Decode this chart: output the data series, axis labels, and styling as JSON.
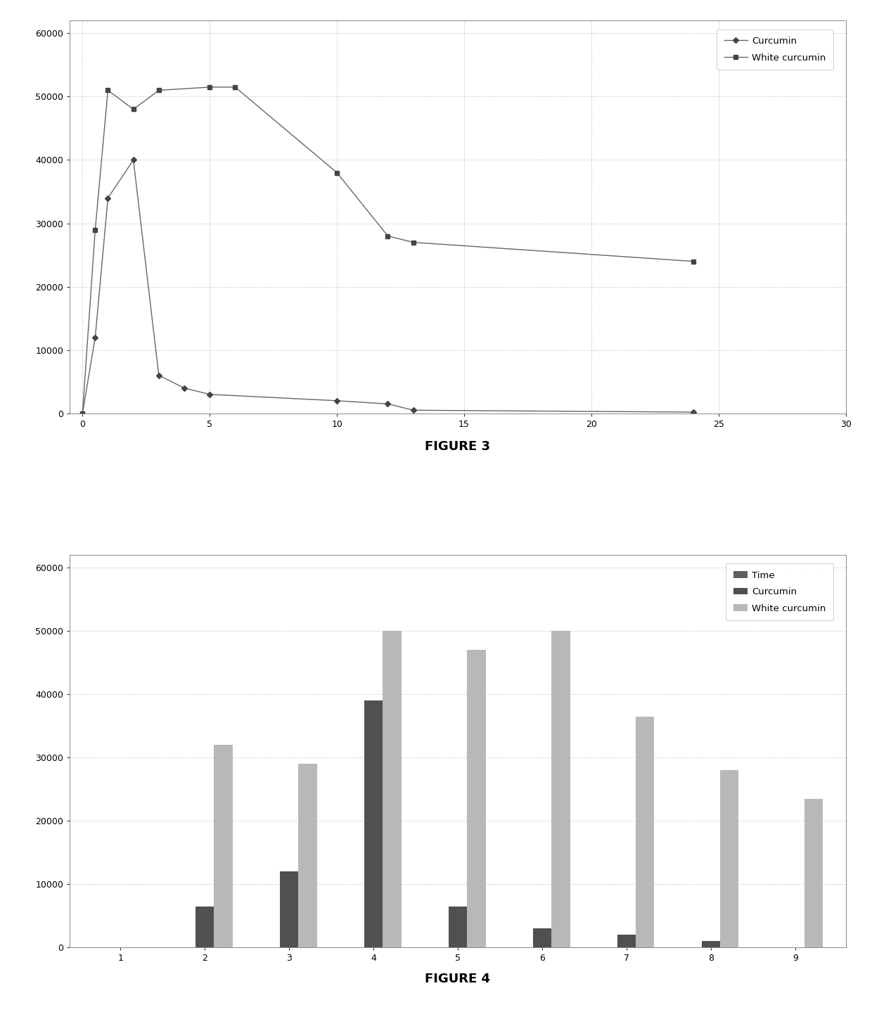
{
  "fig3": {
    "curcumin_x": [
      0,
      0.5,
      1,
      2,
      3,
      4,
      5,
      10,
      12,
      13,
      24
    ],
    "curcumin_y": [
      0,
      12000,
      34000,
      40000,
      6000,
      4000,
      3000,
      2000,
      1500,
      500,
      200
    ],
    "white_curcumin_x": [
      0,
      0.5,
      1,
      2,
      3,
      5,
      6,
      10,
      12,
      13,
      24
    ],
    "white_curcumin_y": [
      0,
      29000,
      51000,
      48000,
      51000,
      51500,
      51500,
      38000,
      28000,
      27000,
      24000
    ],
    "xlim": [
      -0.5,
      30
    ],
    "ylim": [
      0,
      62000
    ],
    "xticks": [
      0,
      5,
      10,
      15,
      20,
      25,
      30
    ],
    "yticks": [
      0,
      10000,
      20000,
      30000,
      40000,
      50000,
      60000
    ],
    "legend_curcumin": "Curcumin",
    "legend_white": "White curcumin"
  },
  "fig4": {
    "categories": [
      1,
      2,
      3,
      4,
      5,
      6,
      7,
      8,
      9
    ],
    "time": [
      0,
      0,
      0,
      0,
      0,
      0,
      0,
      0,
      0
    ],
    "curcumin": [
      0,
      6500,
      12000,
      39000,
      6500,
      3000,
      2000,
      1000,
      0
    ],
    "white_curcumin": [
      0,
      32000,
      29000,
      50000,
      47000,
      50000,
      36500,
      28000,
      23500
    ],
    "xlim": [
      0.4,
      9.6
    ],
    "ylim": [
      0,
      62000
    ],
    "yticks": [
      0,
      10000,
      20000,
      30000,
      40000,
      50000,
      60000
    ],
    "legend_time": "Time",
    "legend_curcumin": "Curcumin",
    "legend_white": "White curcumin",
    "time_color": "#606060",
    "curcumin_color": "#505050",
    "white_color": "#b8b8b8"
  },
  "figure3_label": "FIGURE 3",
  "figure4_label": "FIGURE 4",
  "background_color": "#ffffff",
  "line_color": "#666666",
  "marker_color": "#444444",
  "grid_color": "#aaaaaa"
}
